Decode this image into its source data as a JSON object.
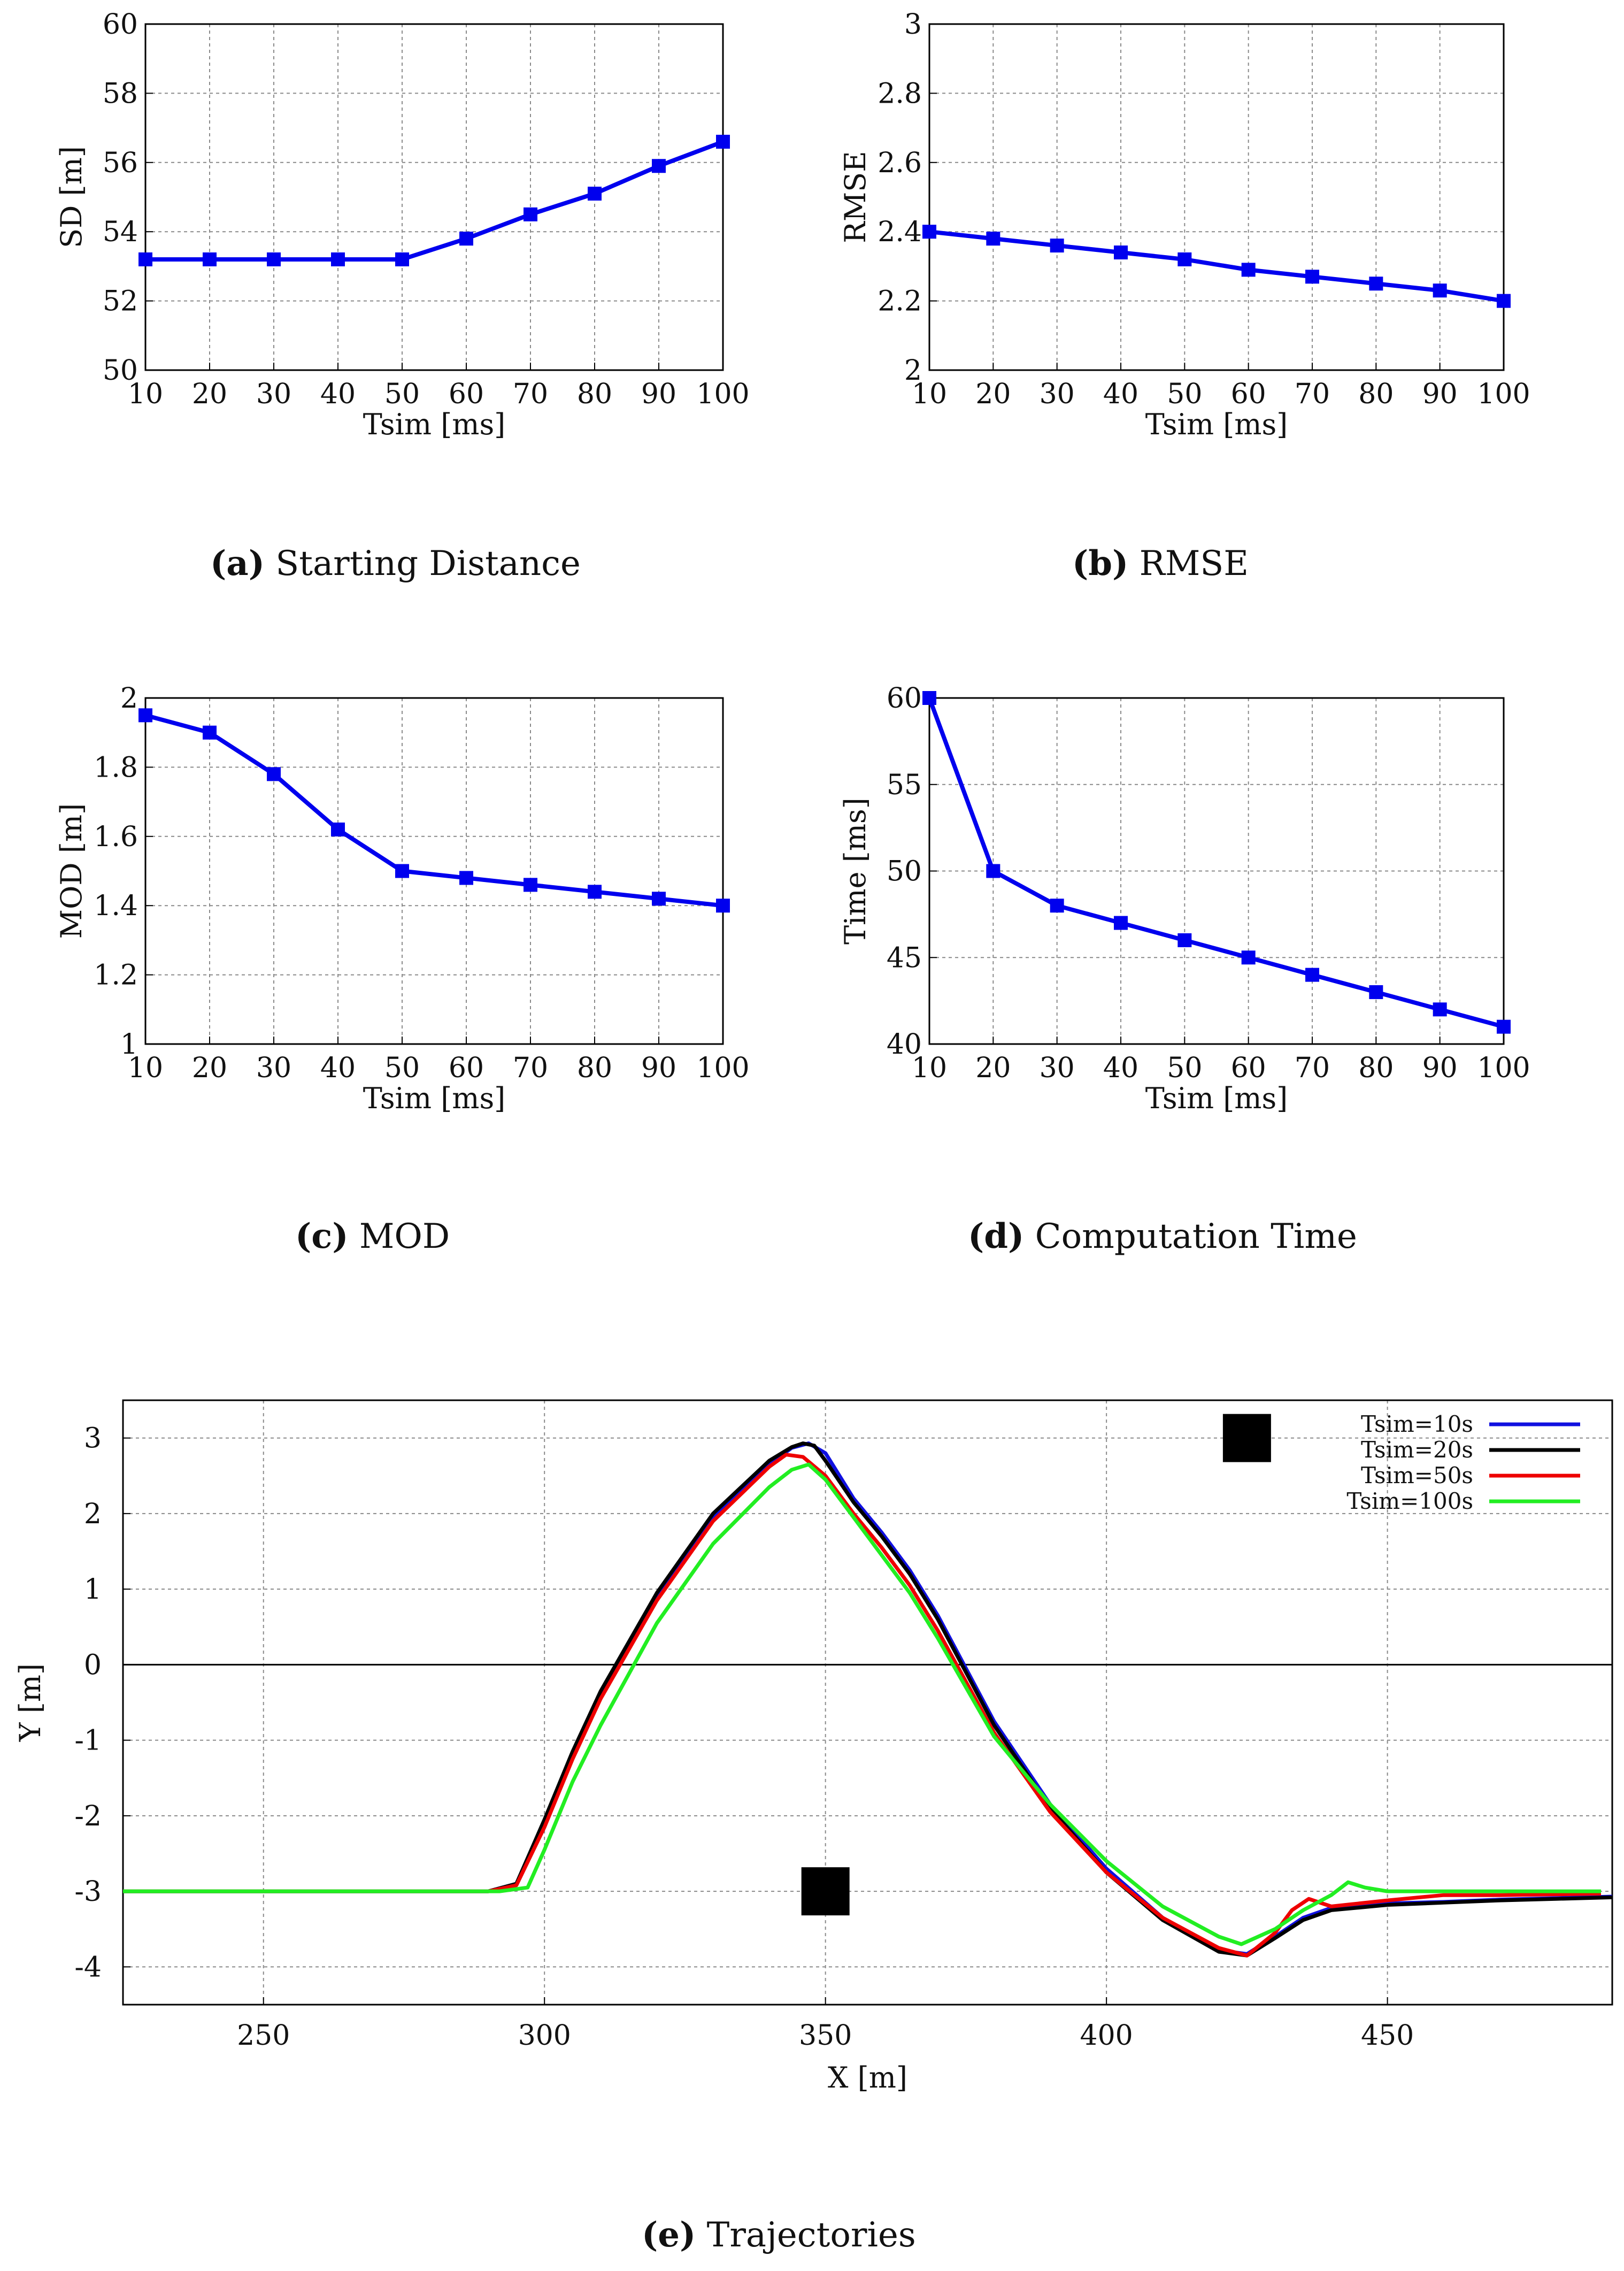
{
  "chart_data": [
    {
      "id": "a",
      "type": "line",
      "caption_label": "(a)",
      "caption_text": " Starting Distance",
      "xlabel": "Tsim [ms]",
      "ylabel": "SD [m]",
      "x": [
        10,
        20,
        30,
        40,
        50,
        60,
        70,
        80,
        90,
        100
      ],
      "values": [
        53.2,
        53.2,
        53.2,
        53.2,
        53.2,
        53.8,
        54.5,
        55.1,
        55.9,
        56.6
      ],
      "xlim": [
        10,
        100
      ],
      "ylim": [
        50,
        60
      ],
      "xticks": [
        "10",
        "20",
        "30",
        "40",
        "50",
        "60",
        "70",
        "80",
        "90",
        "100"
      ],
      "yticks": [
        "50",
        "52",
        "54",
        "56",
        "58",
        "60"
      ],
      "grid": true,
      "color": "#0000ee"
    },
    {
      "id": "b",
      "type": "line",
      "caption_label": "(b)",
      "caption_text": " RMSE",
      "xlabel": "Tsim [ms]",
      "ylabel": "RMSE",
      "x": [
        10,
        20,
        30,
        40,
        50,
        60,
        70,
        80,
        90,
        100
      ],
      "values": [
        2.4,
        2.38,
        2.36,
        2.34,
        2.32,
        2.29,
        2.27,
        2.25,
        2.23,
        2.2
      ],
      "xlim": [
        10,
        100
      ],
      "ylim": [
        2,
        3
      ],
      "xticks": [
        "10",
        "20",
        "30",
        "40",
        "50",
        "60",
        "70",
        "80",
        "90",
        "100"
      ],
      "yticks": [
        "2",
        "2.2",
        "2.4",
        "2.6",
        "2.8",
        "3"
      ],
      "grid": true,
      "color": "#0000ee"
    },
    {
      "id": "c",
      "type": "line",
      "caption_label": "(c)",
      "caption_text": " MOD",
      "xlabel": "Tsim [ms]",
      "ylabel": "MOD [m]",
      "x": [
        10,
        20,
        30,
        40,
        50,
        60,
        70,
        80,
        90,
        100
      ],
      "values": [
        1.95,
        1.9,
        1.78,
        1.62,
        1.5,
        1.48,
        1.46,
        1.44,
        1.42,
        1.4
      ],
      "xlim": [
        10,
        100
      ],
      "ylim": [
        1,
        2
      ],
      "xticks": [
        "10",
        "20",
        "30",
        "40",
        "50",
        "60",
        "70",
        "80",
        "90",
        "100"
      ],
      "yticks": [
        "1",
        "1.2",
        "1.4",
        "1.6",
        "1.8",
        "2"
      ],
      "grid": true,
      "color": "#0000ee"
    },
    {
      "id": "d",
      "type": "line",
      "caption_label": "(d)",
      "caption_text": " Computation Time",
      "xlabel": "Tsim [ms]",
      "ylabel": "Time [ms]",
      "x": [
        10,
        20,
        30,
        40,
        50,
        60,
        70,
        80,
        90,
        100
      ],
      "values": [
        60,
        50,
        48,
        47,
        46,
        45,
        44,
        43,
        42,
        41
      ],
      "xlim": [
        10,
        100
      ],
      "ylim": [
        40,
        60
      ],
      "xticks": [
        "10",
        "20",
        "30",
        "40",
        "50",
        "60",
        "70",
        "80",
        "90",
        "100"
      ],
      "yticks": [
        "40",
        "45",
        "50",
        "55",
        "60"
      ],
      "grid": true,
      "color": "#0000ee"
    },
    {
      "id": "e",
      "type": "line",
      "caption_label": "(e)",
      "caption_text": " Trajectories",
      "xlabel": "X [m]",
      "ylabel": "Y [m]",
      "xlim": [
        225,
        490
      ],
      "ylim": [
        -4.5,
        3.5
      ],
      "xticks": [
        "250",
        "300",
        "350",
        "400",
        "450"
      ],
      "xtick_values": [
        250,
        300,
        350,
        400,
        450
      ],
      "yticks": [
        "3",
        "2",
        "1",
        "0",
        "-1",
        "-2",
        "-3",
        "-4"
      ],
      "ytick_values": [
        3,
        2,
        1,
        0,
        -1,
        -2,
        -3,
        -4
      ],
      "grid": true,
      "zero_line": true,
      "obstacles": [
        {
          "x": 350,
          "y": -3
        },
        {
          "x": 425,
          "y": 3
        }
      ],
      "legend_position": "top-right",
      "series": [
        {
          "name": "Tsim=10s",
          "color": "#1010e0",
          "x": [
            225,
            290,
            295,
            300,
            305,
            310,
            320,
            330,
            340,
            344,
            347,
            350,
            355,
            360,
            365,
            370,
            380,
            390,
            400,
            410,
            420,
            425,
            430,
            435,
            440,
            450,
            460,
            470,
            480,
            490
          ],
          "y": [
            -3,
            -3,
            -2.9,
            -2.1,
            -1.2,
            -0.4,
            0.9,
            1.95,
            2.65,
            2.87,
            2.93,
            2.8,
            2.2,
            1.75,
            1.25,
            0.65,
            -0.75,
            -1.85,
            -2.7,
            -3.35,
            -3.78,
            -3.83,
            -3.6,
            -3.35,
            -3.22,
            -3.16,
            -3.14,
            -3.11,
            -3.09,
            -3.07
          ]
        },
        {
          "name": "Tsim=20s",
          "color": "#000000",
          "x": [
            225,
            290,
            295,
            300,
            305,
            310,
            320,
            330,
            340,
            344,
            346,
            348,
            350,
            355,
            360,
            365,
            370,
            380,
            390,
            400,
            410,
            420,
            425,
            430,
            435,
            440,
            450,
            460,
            470,
            480,
            490
          ],
          "y": [
            -3,
            -3,
            -2.9,
            -2.05,
            -1.15,
            -0.35,
            0.95,
            2.0,
            2.7,
            2.88,
            2.93,
            2.9,
            2.7,
            2.15,
            1.7,
            1.2,
            0.6,
            -0.8,
            -1.9,
            -2.75,
            -3.38,
            -3.8,
            -3.85,
            -3.62,
            -3.38,
            -3.25,
            -3.18,
            -3.15,
            -3.12,
            -3.1,
            -3.08
          ]
        },
        {
          "name": "Tsim=50s",
          "color": "#ee0000",
          "x": [
            225,
            290,
            295,
            300,
            305,
            310,
            320,
            330,
            340,
            343,
            346,
            350,
            355,
            360,
            365,
            370,
            380,
            390,
            400,
            410,
            420,
            425,
            430,
            433,
            436,
            440,
            450,
            460,
            470,
            480,
            488
          ],
          "y": [
            -3,
            -3,
            -2.92,
            -2.15,
            -1.25,
            -0.45,
            0.85,
            1.9,
            2.62,
            2.78,
            2.75,
            2.5,
            2.0,
            1.55,
            1.05,
            0.45,
            -0.9,
            -1.95,
            -2.75,
            -3.35,
            -3.75,
            -3.85,
            -3.55,
            -3.25,
            -3.1,
            -3.2,
            -3.12,
            -3.05,
            -3.05,
            -3.04,
            -3.03
          ]
        },
        {
          "name": "Tsim=100s",
          "color": "#22ee22",
          "x": [
            225,
            292,
            297,
            300,
            305,
            310,
            320,
            330,
            340,
            344,
            347,
            350,
            355,
            360,
            365,
            370,
            380,
            390,
            400,
            410,
            420,
            424,
            430,
            435,
            440,
            443,
            446,
            450,
            460,
            470,
            480,
            488
          ],
          "y": [
            -3,
            -3,
            -2.95,
            -2.45,
            -1.55,
            -0.8,
            0.55,
            1.6,
            2.35,
            2.58,
            2.65,
            2.45,
            1.95,
            1.45,
            0.95,
            0.35,
            -0.95,
            -1.85,
            -2.6,
            -3.2,
            -3.6,
            -3.7,
            -3.5,
            -3.25,
            -3.05,
            -2.88,
            -2.95,
            -3.0,
            -3.0,
            -3.0,
            -3.0,
            -3.0
          ]
        }
      ]
    }
  ]
}
